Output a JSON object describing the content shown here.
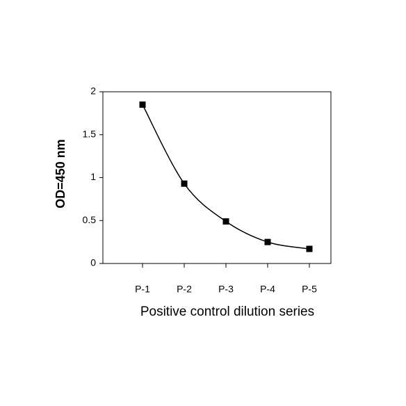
{
  "chart_data": {
    "type": "line",
    "x_label": "Positive control dilution series",
    "y_label": "OD=450 nm",
    "categories": [
      "P-1",
      "P-2",
      "P-3",
      "P-4",
      "P-5"
    ],
    "values": [
      1.85,
      0.93,
      0.49,
      0.25,
      0.17
    ],
    "color": "#000000",
    "ylim": [
      0,
      2
    ],
    "yticks": [
      0,
      0.5,
      1,
      1.5,
      2
    ],
    "grid": false
  }
}
